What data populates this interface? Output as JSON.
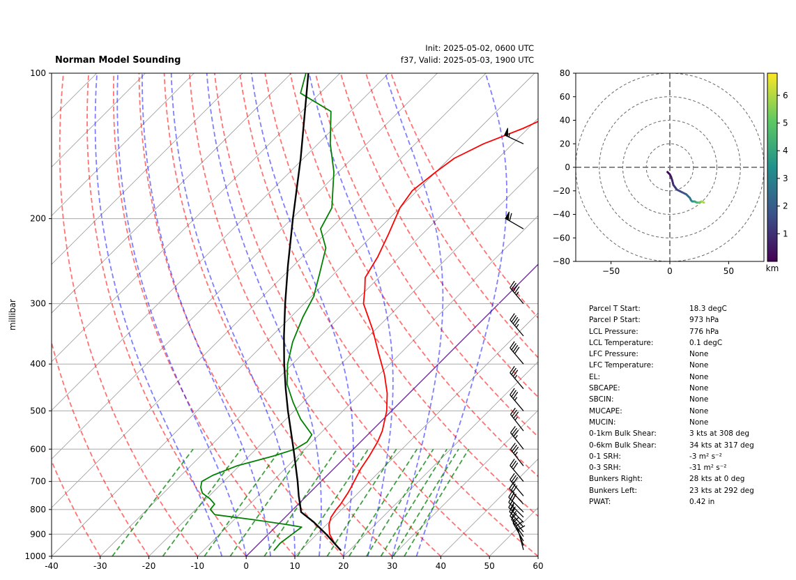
{
  "header": {
    "title": "Norman Model Sounding",
    "init": "Init: 2025-05-02, 0600 UTC",
    "valid": "f37, Valid: 2025-05-03, 1900 UTC"
  },
  "chart_data": [
    {
      "type": "line",
      "name": "skew-t",
      "ylabel": "millibar",
      "yscale": "log",
      "ylim": [
        1000,
        100
      ],
      "xlim": [
        -40,
        60
      ],
      "skew_deg": 45,
      "xticks": [
        "-40",
        "-30",
        "-20",
        "-10",
        "0",
        "10",
        "20",
        "30",
        "40",
        "50",
        "60"
      ],
      "yticks": [
        "1000",
        "900",
        "800",
        "700",
        "600",
        "500",
        "400",
        "300",
        "200",
        "100"
      ],
      "grid": true,
      "series": [
        {
          "id": "temperature",
          "color": "#ff0000",
          "points": [
            [
              973,
              18.3
            ],
            [
              940,
              15.5
            ],
            [
              900,
              12.6
            ],
            [
              860,
              10.5
            ],
            [
              830,
              9.4
            ],
            [
              800,
              8.9
            ],
            [
              780,
              8.7
            ],
            [
              760,
              8.3
            ],
            [
              740,
              7.9
            ],
            [
              720,
              7.4
            ],
            [
              700,
              6.8
            ],
            [
              660,
              5.6
            ],
            [
              620,
              4.7
            ],
            [
              580,
              3.5
            ],
            [
              550,
              2.2
            ],
            [
              500,
              -1.0
            ],
            [
              460,
              -4.5
            ],
            [
              420,
              -9.0
            ],
            [
              380,
              -14.5
            ],
            [
              340,
              -20.5
            ],
            [
              300,
              -27.8
            ],
            [
              280,
              -30.5
            ],
            [
              265,
              -32.8
            ],
            [
              240,
              -34.5
            ],
            [
              215,
              -37.0
            ],
            [
              190,
              -40.0
            ],
            [
              175,
              -41.0
            ],
            [
              160,
              -40.0
            ],
            [
              150,
              -39.0
            ],
            [
              140,
              -36.0
            ],
            [
              130,
              -31.0
            ],
            [
              120,
              -27.0
            ],
            [
              110,
              -21.0
            ],
            [
              100,
              -18.0
            ]
          ]
        },
        {
          "id": "dewpoint",
          "color": "#008000",
          "points": [
            [
              973,
              4.5
            ],
            [
              940,
              4.3
            ],
            [
              900,
              4.9
            ],
            [
              870,
              5.4
            ],
            [
              860,
              2.0
            ],
            [
              840,
              -6.0
            ],
            [
              820,
              -15.0
            ],
            [
              800,
              -17.0
            ],
            [
              780,
              -17.2
            ],
            [
              760,
              -19.3
            ],
            [
              740,
              -22.0
            ],
            [
              720,
              -23.5
            ],
            [
              700,
              -24.5
            ],
            [
              680,
              -23.5
            ],
            [
              650,
              -20.5
            ],
            [
              620,
              -15.0
            ],
            [
              600,
              -12.0
            ],
            [
              580,
              -11.0
            ],
            [
              560,
              -11.5
            ],
            [
              520,
              -17.0
            ],
            [
              480,
              -22.0
            ],
            [
              440,
              -27.0
            ],
            [
              400,
              -31.0
            ],
            [
              360,
              -34.5
            ],
            [
              320,
              -37.5
            ],
            [
              290,
              -39.5
            ],
            [
              260,
              -43.0
            ],
            [
              230,
              -47.0
            ],
            [
              210,
              -52.0
            ],
            [
              190,
              -54.0
            ],
            [
              160,
              -61.0
            ],
            [
              140,
              -67.5
            ],
            [
              120,
              -74.0
            ],
            [
              110,
              -84.0
            ],
            [
              100,
              -87.0
            ]
          ]
        },
        {
          "id": "parcel",
          "color": "#000000",
          "points": [
            [
              973,
              18.3
            ],
            [
              900,
              11.9
            ],
            [
              850,
              6.9
            ],
            [
              810,
              2.2
            ],
            [
              776,
              0.1
            ],
            [
              750,
              -1.6
            ],
            [
              700,
              -4.8
            ],
            [
              650,
              -8.4
            ],
            [
              600,
              -12.3
            ],
            [
              550,
              -16.6
            ],
            [
              500,
              -21.3
            ],
            [
              450,
              -26.3
            ],
            [
              400,
              -31.7
            ],
            [
              350,
              -37.5
            ],
            [
              300,
              -43.9
            ],
            [
              250,
              -51.2
            ],
            [
              200,
              -59.8
            ],
            [
              150,
              -70.6
            ],
            [
              100,
              -86.5
            ]
          ]
        }
      ],
      "wind_barbs": [
        {
          "p": 970,
          "speed": 10,
          "dir": 345
        },
        {
          "p": 950,
          "speed": 10,
          "dir": 340
        },
        {
          "p": 930,
          "speed": 15,
          "dir": 330
        },
        {
          "p": 910,
          "speed": 15,
          "dir": 325
        },
        {
          "p": 890,
          "speed": 20,
          "dir": 320
        },
        {
          "p": 870,
          "speed": 20,
          "dir": 318
        },
        {
          "p": 850,
          "speed": 25,
          "dir": 315
        },
        {
          "p": 830,
          "speed": 25,
          "dir": 315
        },
        {
          "p": 810,
          "speed": 30,
          "dir": 315
        },
        {
          "p": 780,
          "speed": 30,
          "dir": 318
        },
        {
          "p": 750,
          "speed": 30,
          "dir": 320
        },
        {
          "p": 700,
          "speed": 30,
          "dir": 320
        },
        {
          "p": 650,
          "speed": 35,
          "dir": 322
        },
        {
          "p": 600,
          "speed": 35,
          "dir": 322
        },
        {
          "p": 550,
          "speed": 35,
          "dir": 322
        },
        {
          "p": 500,
          "speed": 35,
          "dir": 320
        },
        {
          "p": 450,
          "speed": 35,
          "dir": 320
        },
        {
          "p": 400,
          "speed": 40,
          "dir": 320
        },
        {
          "p": 350,
          "speed": 45,
          "dir": 320
        },
        {
          "p": 300,
          "speed": 45,
          "dir": 320
        },
        {
          "p": 210,
          "speed": 60,
          "dir": 300
        },
        {
          "p": 140,
          "speed": 55,
          "dir": 295
        }
      ],
      "dry_adiabats_theta_C": [
        -30,
        -20,
        -10,
        0,
        10,
        20,
        30,
        40,
        50,
        60,
        70,
        80,
        90,
        100,
        110,
        120
      ],
      "moist_adiabats_C": [
        -5,
        0,
        5,
        10,
        15,
        20,
        25,
        30,
        35
      ],
      "mixing_ratio_lines_gkg": [
        0.4,
        1,
        2,
        3,
        5,
        8,
        12,
        16,
        20,
        24,
        28,
        32
      ],
      "colors": {
        "dry_adiabat": "#ff0000",
        "moist_adiabat": "#0000ff",
        "mixing_ratio": "#008000",
        "isotherm": "#999999",
        "isobar": "#aaaaaa",
        "zero_isotherm": "#7030a0"
      }
    },
    {
      "type": "line",
      "name": "hodograph",
      "xlim": [
        -80,
        80
      ],
      "ylim": [
        -80,
        80
      ],
      "xticks": [
        "−50",
        "0",
        "50"
      ],
      "yticks": [
        "80",
        "60",
        "40",
        "20",
        "0",
        "−20",
        "−40",
        "−60",
        "−80"
      ],
      "rings": [
        20,
        40,
        60,
        80
      ],
      "colorbar_label": "km",
      "colorbar_ticks": [
        "1",
        "2",
        "3",
        "4",
        "5",
        "6"
      ],
      "colorbar_range": [
        0,
        6.8
      ],
      "points": [
        [
          -2,
          -4,
          0.1
        ],
        [
          0,
          -6,
          0.3
        ],
        [
          1,
          -8,
          0.5
        ],
        [
          2,
          -11,
          0.8
        ],
        [
          3,
          -15,
          1.1
        ],
        [
          6,
          -19,
          1.4
        ],
        [
          10,
          -21,
          1.8
        ],
        [
          14,
          -23,
          2.2
        ],
        [
          17,
          -26,
          2.6
        ],
        [
          18,
          -28,
          3.0
        ],
        [
          19,
          -29,
          3.5
        ],
        [
          21,
          -29,
          4.0
        ],
        [
          23,
          -30,
          4.6
        ],
        [
          25,
          -30,
          5.2
        ],
        [
          27,
          -29,
          5.9
        ],
        [
          29,
          -30,
          6.5
        ]
      ]
    }
  ],
  "stats": [
    {
      "label": "Parcel T Start:",
      "value": "18.3 degC"
    },
    {
      "label": "Parcel P Start:",
      "value": "973 hPa"
    },
    {
      "label": "LCL Pressure:",
      "value": "776 hPa"
    },
    {
      "label": "LCL Temperature:",
      "value": "0.1 degC"
    },
    {
      "label": "LFC Pressure:",
      "value": "None"
    },
    {
      "label": "LFC Temperature:",
      "value": "None"
    },
    {
      "label": "EL:",
      "value": "None"
    },
    {
      "label": "SBCAPE:",
      "value": "None"
    },
    {
      "label": "SBCIN:",
      "value": "None"
    },
    {
      "label": "MUCAPE:",
      "value": "None"
    },
    {
      "label": "MUCIN:",
      "value": "None"
    },
    {
      "label": "0-1km Bulk Shear:",
      "value": "3 kts at 308 deg"
    },
    {
      "label": "0-6km Bulk Shear:",
      "value": "34 kts at 317 deg"
    },
    {
      "label": "0-1 SRH:",
      "value": "-3 m² s⁻²"
    },
    {
      "label": "0-3 SRH:",
      "value": "-31 m² s⁻²"
    },
    {
      "label": "Bunkers Right:",
      "value": "28 kts at 0 deg"
    },
    {
      "label": "Bunkers Left:",
      "value": "23 kts at 292 deg"
    },
    {
      "label": "PWAT:",
      "value": "0.42 in"
    }
  ]
}
